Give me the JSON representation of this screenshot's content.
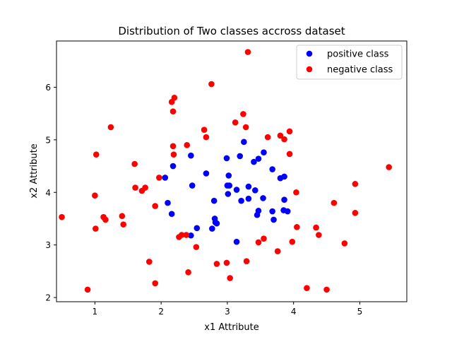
{
  "chart_data": {
    "type": "scatter",
    "title": "Distribution of Two classes accross dataset",
    "xlabel": "x1 Attribute",
    "ylabel": "x2 Attribute",
    "xlim": [
      0.42,
      5.71
    ],
    "ylim": [
      1.92,
      6.88
    ],
    "xticks": [
      "1",
      "2",
      "3",
      "4",
      "5"
    ],
    "xtick_values": [
      1,
      2,
      3,
      4,
      5
    ],
    "yticks": [
      "2",
      "3",
      "4",
      "5",
      "6"
    ],
    "ytick_values": [
      2,
      3,
      4,
      5,
      6
    ],
    "grid": false,
    "legend_position": "upper right",
    "series": [
      {
        "name": "positive class",
        "color": "#0000ff",
        "points": [
          [
            2.06,
            4.28
          ],
          [
            2.1,
            3.8
          ],
          [
            2.16,
            3.59
          ],
          [
            2.18,
            4.5
          ],
          [
            2.45,
            4.7
          ],
          [
            2.47,
            4.13
          ],
          [
            2.45,
            3.18
          ],
          [
            2.54,
            3.32
          ],
          [
            2.68,
            4.36
          ],
          [
            2.77,
            3.31
          ],
          [
            2.81,
            3.5
          ],
          [
            2.82,
            3.43
          ],
          [
            2.84,
            3.41
          ],
          [
            2.8,
            3.84
          ],
          [
            2.99,
            4.65
          ],
          [
            3.0,
            4.13
          ],
          [
            3.02,
            4.32
          ],
          [
            3.01,
            3.97
          ],
          [
            3.03,
            4.13
          ],
          [
            3.14,
            3.06
          ],
          [
            3.14,
            4.05
          ],
          [
            3.19,
            4.69
          ],
          [
            3.21,
            3.84
          ],
          [
            3.25,
            4.96
          ],
          [
            3.32,
            3.88
          ],
          [
            3.32,
            4.11
          ],
          [
            3.4,
            4.58
          ],
          [
            3.42,
            4.04
          ],
          [
            3.45,
            3.57
          ],
          [
            3.47,
            3.65
          ],
          [
            3.47,
            4.64
          ],
          [
            3.54,
            3.89
          ],
          [
            3.55,
            4.76
          ],
          [
            3.68,
            3.64
          ],
          [
            3.68,
            4.44
          ],
          [
            3.7,
            3.48
          ],
          [
            3.8,
            4.27
          ],
          [
            3.86,
            4.3
          ],
          [
            3.85,
            3.66
          ],
          [
            3.86,
            3.86
          ],
          [
            3.91,
            3.64
          ]
        ]
      },
      {
        "name": "negative class",
        "color": "#ff0000",
        "points": [
          [
            0.5,
            3.53
          ],
          [
            0.89,
            2.15
          ],
          [
            1.0,
            3.94
          ],
          [
            1.01,
            3.31
          ],
          [
            1.02,
            4.72
          ],
          [
            1.13,
            3.53
          ],
          [
            1.16,
            3.48
          ],
          [
            1.24,
            5.24
          ],
          [
            1.41,
            3.55
          ],
          [
            1.43,
            3.39
          ],
          [
            1.6,
            4.54
          ],
          [
            1.61,
            4.09
          ],
          [
            1.71,
            4.03
          ],
          [
            1.76,
            4.09
          ],
          [
            1.82,
            2.68
          ],
          [
            1.91,
            3.74
          ],
          [
            1.91,
            2.27
          ],
          [
            1.97,
            4.28
          ],
          [
            2.16,
            5.72
          ],
          [
            2.18,
            5.54
          ],
          [
            2.18,
            4.88
          ],
          [
            2.2,
            5.8
          ],
          [
            2.19,
            4.72
          ],
          [
            2.27,
            3.15
          ],
          [
            2.31,
            3.19
          ],
          [
            2.38,
            3.19
          ],
          [
            2.39,
            4.9
          ],
          [
            2.41,
            2.48
          ],
          [
            2.53,
            2.96
          ],
          [
            2.65,
            5.19
          ],
          [
            2.68,
            5.05
          ],
          [
            2.76,
            6.06
          ],
          [
            2.84,
            2.64
          ],
          [
            2.99,
            2.66
          ],
          [
            3.04,
            2.37
          ],
          [
            3.12,
            5.33
          ],
          [
            3.24,
            5.49
          ],
          [
            3.28,
            5.24
          ],
          [
            3.29,
            2.69
          ],
          [
            3.31,
            6.67
          ],
          [
            3.47,
            3.05
          ],
          [
            3.55,
            3.12
          ],
          [
            3.61,
            5.05
          ],
          [
            3.76,
            2.88
          ],
          [
            3.8,
            5.08
          ],
          [
            3.86,
            5.01
          ],
          [
            3.94,
            5.16
          ],
          [
            3.94,
            4.73
          ],
          [
            3.98,
            3.06
          ],
          [
            4.04,
            4.0
          ],
          [
            4.05,
            3.34
          ],
          [
            4.2,
            2.18
          ],
          [
            4.34,
            3.33
          ],
          [
            4.38,
            3.19
          ],
          [
            4.5,
            2.15
          ],
          [
            4.61,
            3.8
          ],
          [
            4.77,
            3.03
          ],
          [
            4.93,
            4.16
          ],
          [
            4.93,
            3.61
          ],
          [
            5.44,
            4.48
          ]
        ]
      }
    ]
  }
}
